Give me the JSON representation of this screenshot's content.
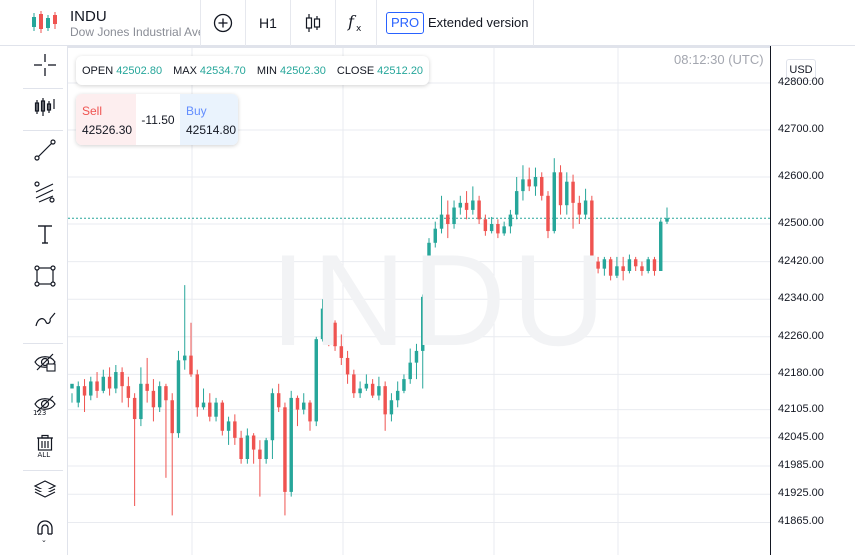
{
  "header": {
    "symbol": "INDU",
    "description": "Dow Jones Industrial Average",
    "pro_label": "PRO",
    "extended_label": "Extended version",
    "timeframe": "H1"
  },
  "ohlc": {
    "open_label": "OPEN",
    "open": "42502.80",
    "max_label": "MAX",
    "max": "42534.70",
    "min_label": "MIN",
    "min": "42502.30",
    "close_label": "CLOSE",
    "close": "42512.20"
  },
  "trade": {
    "sell_label": "Sell",
    "sell_price": "42526.30",
    "spread": "-11.50",
    "buy_label": "Buy",
    "buy_price": "42514.80"
  },
  "clock": "08:12:30 (UTC)",
  "currency": "USD",
  "watermark": "INDU",
  "colors": {
    "up": "#26a69a",
    "down": "#ef5350",
    "accent": "#2962ff"
  },
  "left_tools": [
    "crosshair-icon",
    "indicators-icon",
    "trendline-icon",
    "fib-icon",
    "text-icon",
    "rectangle-icon",
    "brush-icon",
    "eye-icon",
    "hide-indicators-icon",
    "trash-icon",
    "layers-icon",
    "magnet-icon"
  ],
  "chart_data": {
    "type": "candlestick",
    "price_labels": [
      "42800.00",
      "42700.00",
      "42600.00",
      "42500.00",
      "42420.00",
      "42340.00",
      "42260.00",
      "42180.00",
      "42105.00",
      "42045.00",
      "41985.00",
      "41925.00",
      "41865.00"
    ],
    "last_price": 42512.2,
    "candles": [
      [
        42150,
        42160,
        42140,
        42120
      ],
      [
        42120,
        42155,
        42165,
        42110
      ],
      [
        42155,
        42135,
        42170,
        42100
      ],
      [
        42135,
        42165,
        42175,
        42125
      ],
      [
        42165,
        42145,
        42185,
        42130
      ],
      [
        42145,
        42175,
        42190,
        42140
      ],
      [
        42175,
        42150,
        42195,
        42135
      ],
      [
        42150,
        42185,
        42200,
        42140
      ],
      [
        42185,
        42155,
        42195,
        42120
      ],
      [
        42155,
        42130,
        42175,
        42110
      ],
      [
        42130,
        42085,
        42140,
        41900
      ],
      [
        42085,
        42160,
        42195,
        42070
      ],
      [
        42160,
        42145,
        42215,
        42120
      ],
      [
        42145,
        42110,
        42170,
        42080
      ],
      [
        42110,
        42155,
        42165,
        42100
      ],
      [
        42155,
        42125,
        42160,
        41960
      ],
      [
        42125,
        42055,
        42140,
        41880
      ],
      [
        42055,
        42210,
        42230,
        42045
      ],
      [
        42210,
        42220,
        42370,
        42190
      ],
      [
        42220,
        42180,
        42290,
        42175
      ],
      [
        42180,
        42110,
        42190,
        42090
      ],
      [
        42110,
        42120,
        42150,
        42105
      ],
      [
        42120,
        42090,
        42140,
        42080
      ],
      [
        42090,
        42120,
        42130,
        42080
      ],
      [
        42120,
        42060,
        42125,
        42050
      ],
      [
        42060,
        42080,
        42090,
        42030
      ],
      [
        42080,
        42045,
        42095,
        42030
      ],
      [
        42045,
        42000,
        42060,
        41990
      ],
      [
        42000,
        42050,
        42065,
        41990
      ],
      [
        42050,
        42020,
        42055,
        41990
      ],
      [
        42020,
        42000,
        42040,
        41920
      ],
      [
        42000,
        42040,
        42045,
        41990
      ],
      [
        42040,
        42140,
        42150,
        42000
      ],
      [
        42140,
        42110,
        42160,
        42100
      ],
      [
        42110,
        41930,
        42120,
        41880
      ],
      [
        41930,
        42130,
        42145,
        41920
      ],
      [
        42130,
        42105,
        42135,
        42070
      ],
      [
        42105,
        42120,
        42140,
        42095
      ],
      [
        42120,
        42080,
        42125,
        42060
      ],
      [
        42080,
        42255,
        42260,
        42070
      ],
      [
        42255,
        42320,
        42340,
        42250
      ],
      [
        42320,
        42290,
        42330,
        42240
      ],
      [
        42290,
        42240,
        42295,
        42230
      ],
      [
        42240,
        42215,
        42265,
        42200
      ],
      [
        42215,
        42180,
        42230,
        42160
      ],
      [
        42180,
        42140,
        42190,
        42130
      ],
      [
        42140,
        42150,
        42165,
        42130
      ],
      [
        42150,
        42160,
        42180,
        42145
      ],
      [
        42160,
        42135,
        42170,
        42130
      ],
      [
        42135,
        42155,
        42175,
        42125
      ],
      [
        42155,
        42095,
        42165,
        42060
      ],
      [
        42095,
        42125,
        42140,
        42080
      ],
      [
        42125,
        42145,
        42165,
        42110
      ],
      [
        42145,
        42170,
        42180,
        42140
      ],
      [
        42170,
        42205,
        42235,
        42160
      ],
      [
        42205,
        42230,
        42245,
        42170
      ],
      [
        42230,
        42345,
        42350,
        42150
      ],
      [
        42345,
        42460,
        42470,
        42330
      ],
      [
        42460,
        42490,
        42505,
        42450
      ],
      [
        42490,
        42520,
        42560,
        42480
      ],
      [
        42520,
        42500,
        42550,
        42470
      ],
      [
        42500,
        42535,
        42550,
        42490
      ],
      [
        42535,
        42545,
        42560,
        42520
      ],
      [
        42545,
        42530,
        42570,
        42510
      ],
      [
        42530,
        42550,
        42580,
        42520
      ],
      [
        42550,
        42510,
        42560,
        42500
      ],
      [
        42510,
        42485,
        42520,
        42475
      ],
      [
        42485,
        42500,
        42515,
        42480
      ],
      [
        42500,
        42480,
        42510,
        42470
      ],
      [
        42480,
        42495,
        42505,
        42475
      ],
      [
        42495,
        42520,
        42530,
        42480
      ],
      [
        42520,
        42570,
        42600,
        42510
      ],
      [
        42570,
        42595,
        42625,
        42550
      ],
      [
        42595,
        42580,
        42620,
        42570
      ],
      [
        42580,
        42600,
        42620,
        42560
      ],
      [
        42600,
        42560,
        42610,
        42550
      ],
      [
        42560,
        42485,
        42570,
        42470
      ],
      [
        42485,
        42610,
        42640,
        42480
      ],
      [
        42610,
        42540,
        42625,
        42520
      ],
      [
        42540,
        42590,
        42610,
        42520
      ],
      [
        42590,
        42545,
        42605,
        42490
      ],
      [
        42545,
        42520,
        42560,
        42500
      ],
      [
        42520,
        42550,
        42575,
        42510
      ],
      [
        42550,
        42420,
        42560,
        42410
      ],
      [
        42420,
        42405,
        42430,
        42395
      ],
      [
        42405,
        42425,
        42430,
        42390
      ],
      [
        42425,
        42390,
        42430,
        42380
      ],
      [
        42390,
        42410,
        42430,
        42385
      ],
      [
        42410,
        42400,
        42430,
        42380
      ],
      [
        42400,
        42425,
        42435,
        42395
      ],
      [
        42425,
        42410,
        42430,
        42400
      ],
      [
        42410,
        42400,
        42420,
        42390
      ],
      [
        42400,
        42425,
        42430,
        42395
      ],
      [
        42425,
        42400,
        42430,
        42390
      ],
      [
        42400,
        42505,
        42510,
        42400
      ],
      [
        42505,
        42512,
        42535,
        42500
      ]
    ]
  }
}
